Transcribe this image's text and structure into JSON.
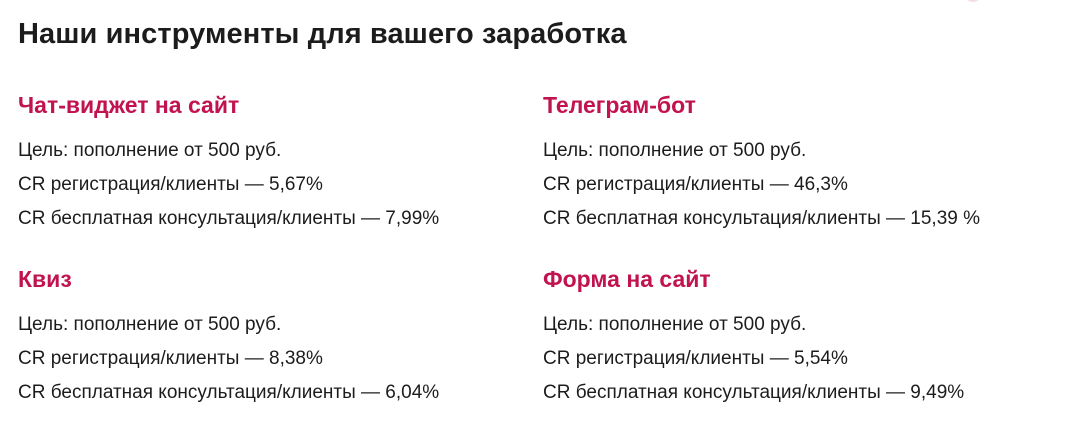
{
  "page": {
    "title": "Наши инструменты для вашего заработка"
  },
  "colors": {
    "accent": "#c1134f",
    "text": "#1c1c1c",
    "background": "#ffffff"
  },
  "tools": [
    {
      "title": "Чат-виджет на сайт",
      "goal": "Цель: пополнение от 500 руб.",
      "cr_registration": "CR регистрация/клиенты — 5,67%",
      "cr_consultation": "CR бесплатная консультация/клиенты — 7,99%"
    },
    {
      "title": "Телеграм-бот",
      "goal": "Цель: пополнение от 500 руб.",
      "cr_registration": "CR регистрация/клиенты — 46,3%",
      "cr_consultation": "CR бесплатная консультация/клиенты — 15,39 %"
    },
    {
      "title": "Квиз",
      "goal": "Цель: пополнение от 500 руб.",
      "cr_registration": "CR регистрация/клиенты — 8,38%",
      "cr_consultation": "CR бесплатная консультация/клиенты — 6,04%"
    },
    {
      "title": "Форма на сайт",
      "goal": "Цель: пополнение от 500 руб.",
      "cr_registration": "CR регистрация/клиенты — 5,54%",
      "cr_consultation": "CR бесплатная консультация/клиенты — 9,49%"
    }
  ]
}
